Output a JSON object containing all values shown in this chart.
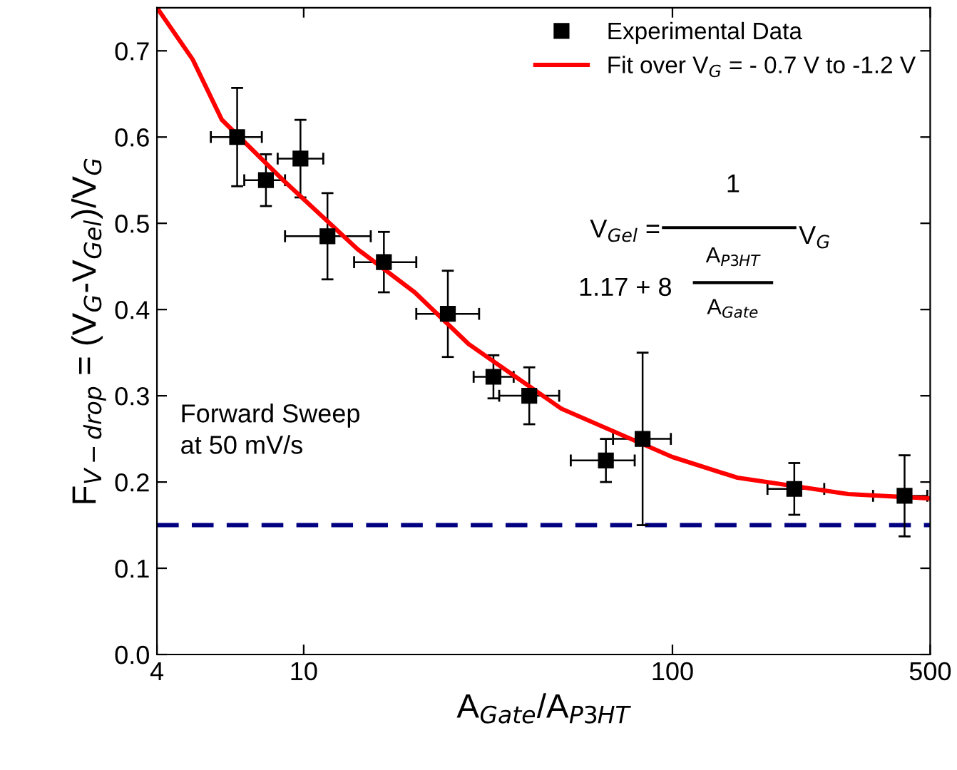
{
  "chart_data": {
    "type": "scatter",
    "xlabel": "A$_{Gate}$/A$_{P3HT}$",
    "ylabel": "F$_{V−drop}$ = (V$_{G}$-V$_{Gel}$)/V$_{G}$",
    "log": "x",
    "xlim": [
      4,
      500
    ],
    "xticks": [
      4,
      10,
      100,
      500
    ],
    "ylim": [
      0,
      0.75
    ],
    "yticks": [
      {
        "value": 0,
        "label": "0.0"
      },
      0.1,
      0.2,
      0.3,
      0.4,
      0.5,
      0.6,
      0.7
    ],
    "grid": false,
    "legend": "top right",
    "series": [
      {
        "name": "Experimental Data",
        "color": "#000000",
        "marker": "square",
        "x": [
          6.6,
          7.9,
          9.8,
          11.6,
          16.5,
          24.6,
          32.7,
          40.9,
          66,
          83,
          214,
          426
        ],
        "values": [
          0.6,
          0.55,
          0.575,
          0.485,
          0.455,
          0.395,
          0.322,
          0.3,
          0.225,
          0.25,
          0.192,
          0.184
        ],
        "errors": [
          0.057,
          0.03,
          0.045,
          0.05,
          0.035,
          0.05,
          0.025,
          0.033,
          0.025,
          0.1,
          0.03,
          0.047
        ],
        "xerrors": [
          [
            5.6,
            7.7
          ],
          [
            6.9,
            8.9
          ],
          [
            8.5,
            11.3
          ],
          [
            8.9,
            15.2
          ],
          [
            13.7,
            20.2
          ],
          [
            20.2,
            29.9
          ],
          [
            28.9,
            37.1
          ],
          [
            33.9,
            49.3
          ],
          [
            53,
            79
          ],
          [
            69,
            99
          ],
          [
            181,
            258
          ],
          [
            350,
            491
          ]
        ]
      },
      {
        "name": "Fit over V$_{G}$ = - 0.7 V to -1.2 V",
        "type": "line",
        "color": "#ff0000",
        "marker": "none",
        "line_style": "solid",
        "x": [
          4,
          5,
          6,
          8.8,
          14,
          20,
          28,
          50,
          100,
          150,
          300,
          500
        ],
        "values": [
          0.75,
          0.69,
          0.62,
          0.55,
          0.47,
          0.42,
          0.36,
          0.285,
          0.229,
          0.205,
          0.186,
          0.181
        ]
      }
    ],
    "ref_lines": [
      {
        "axis": "y",
        "value": 0.15,
        "color": "#000080",
        "line_style": "dashed"
      }
    ],
    "annotations": [
      "Forward Sweep\nat 50 mV/s",
      "V$_{Gel}$ =",
      "1",
      "1.17 + 8",
      "A$_{P3HT}$",
      "A$_{Gate}$",
      "V$_{G}$"
    ]
  }
}
